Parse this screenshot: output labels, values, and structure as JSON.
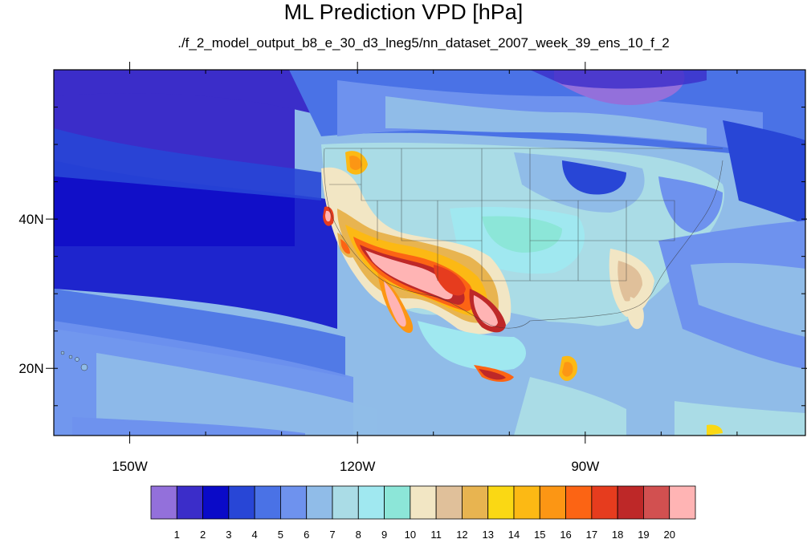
{
  "title": "ML Prediction VPD [hPa]",
  "subtitle": "./f_2_model_output_b8_e_30_d3_lneg5/nn_dataset_2007_week_39_ens_10_f_2",
  "map": {
    "lon_range": [
      -160,
      -61
    ],
    "lat_range": [
      11,
      60
    ],
    "lon_ticks": [
      {
        "value": -150,
        "label": "150W"
      },
      {
        "value": -120,
        "label": "120W"
      },
      {
        "value": -90,
        "label": "90W"
      }
    ],
    "lat_ticks": [
      {
        "value": 40,
        "label": "40N"
      },
      {
        "value": 20,
        "label": "20N"
      }
    ]
  },
  "colorbar": {
    "labels": [
      "1",
      "2",
      "3",
      "4",
      "5",
      "6",
      "7",
      "8",
      "9",
      "10",
      "11",
      "12",
      "13",
      "14",
      "15",
      "16",
      "17",
      "18",
      "19",
      "20"
    ],
    "colors": [
      "#9370db",
      "#3b2dc9",
      "#0a0ac8",
      "#2846d6",
      "#4a72e6",
      "#6e92ee",
      "#90bce8",
      "#aadce6",
      "#a0e8f0",
      "#8ce6d8",
      "#f2e6c4",
      "#e0c09a",
      "#e8b450",
      "#fad814",
      "#fcb914",
      "#fc9614",
      "#fc6414",
      "#e63c1e",
      "#be2828",
      "#d25050",
      "#ffb4b4"
    ]
  }
}
